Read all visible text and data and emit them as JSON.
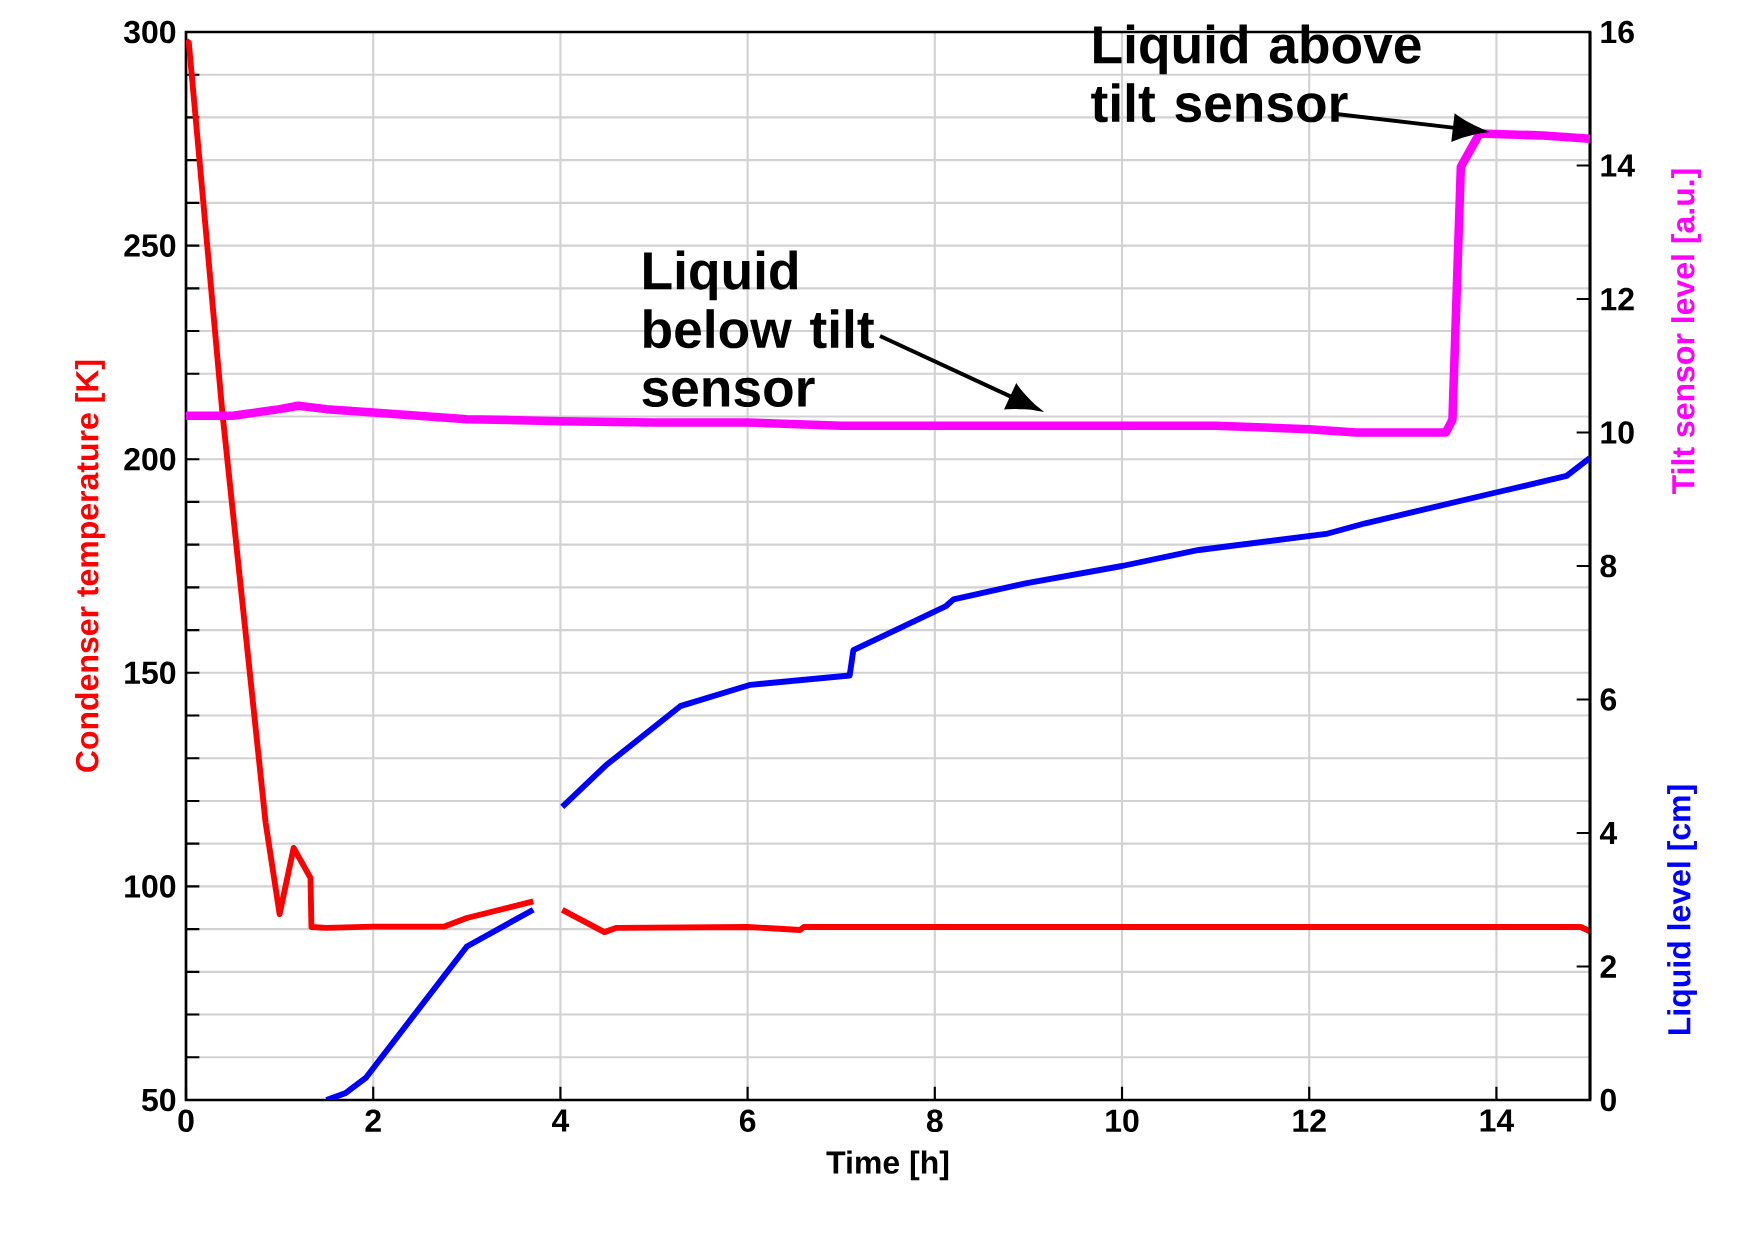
{
  "chart_data": {
    "type": "line",
    "xlabel": "Time [h]",
    "ylabel": "Condenser temperature [K]",
    "y2label": "Tilt sensor level [a.u.]",
    "xlim": [
      0,
      15
    ],
    "xticks": [
      0,
      2,
      4,
      6,
      8,
      10,
      12,
      14
    ],
    "ylim": [
      50,
      300
    ],
    "yticks": [
      50,
      {
        "value": 60,
        "label": null
      },
      {
        "value": 70,
        "label": null
      },
      {
        "value": 80,
        "label": null
      },
      {
        "value": 90,
        "label": null
      },
      100,
      {
        "value": 110,
        "label": null
      },
      {
        "value": 120,
        "label": null
      },
      {
        "value": 130,
        "label": null
      },
      {
        "value": 140,
        "label": null
      },
      150,
      {
        "value": 160,
        "label": null
      },
      {
        "value": 170,
        "label": null
      },
      {
        "value": 180,
        "label": null
      },
      {
        "value": 190,
        "label": null
      },
      200,
      {
        "value": 210,
        "label": null
      },
      {
        "value": 220,
        "label": null
      },
      {
        "value": 230,
        "label": null
      },
      {
        "value": 240,
        "label": null
      },
      250,
      {
        "value": 260,
        "label": null
      },
      {
        "value": 270,
        "label": null
      },
      {
        "value": 280,
        "label": null
      },
      {
        "value": 290,
        "label": null
      },
      300
    ],
    "y2lim": [
      0,
      16
    ],
    "y2ticks": [
      0,
      2,
      4,
      6,
      8,
      10,
      12,
      14,
      16
    ],
    "grid": true,
    "marker": "none",
    "line_style": "solid",
    "series": [
      {
        "color": "#ff0000",
        "axis": "y",
        "x": [
          0,
          0.03,
          0.39,
          0.85,
          1.0,
          1.15,
          1.33,
          1.34,
          1.5,
          2.0,
          2.76,
          3.0,
          3.71,
          3.72,
          4.02,
          4.47,
          4.6,
          6.0,
          6.56,
          6.6,
          8,
          10,
          12,
          14,
          14.9,
          15
        ],
        "values": [
          298,
          297.5,
          210.6,
          115,
          93.5,
          109,
          102,
          90.5,
          90.3,
          90.6,
          90.6,
          92.6,
          96.5,
          null,
          94.5,
          89.3,
          90.3,
          90.5,
          89.8,
          90.5,
          90.5,
          90.5,
          90.5,
          90.5,
          90.5,
          89.5
        ]
      },
      {
        "color": "#ff00ff",
        "axis": "y2",
        "x": [
          0,
          0.5,
          1.0,
          1.2,
          1.5,
          2,
          3,
          4,
          5,
          6,
          7,
          8,
          9,
          10,
          11,
          12,
          12.5,
          13.46,
          13.53,
          13.62,
          13.82,
          14.5,
          15
        ],
        "values": [
          10.25,
          10.25,
          10.35,
          10.4,
          10.35,
          10.3,
          10.2,
          10.17,
          10.15,
          10.15,
          10.1,
          10.1,
          10.1,
          10.1,
          10.1,
          10.05,
          10.0,
          10.0,
          10.19,
          13.98,
          14.48,
          14.45,
          14.4
        ]
      },
      {
        "color": "#0000ff",
        "axis": "y2",
        "x": [
          1.5,
          1.7,
          1.92,
          3.0,
          3.71,
          3.72,
          4.02,
          4.5,
          5.28,
          6.03,
          7.09,
          7.13,
          8.12,
          8.2,
          8.97,
          10.0,
          10.82,
          12.18,
          12.6,
          13.96,
          14.75,
          15
        ],
        "values": [
          0,
          0.1,
          0.33,
          2.3,
          2.85,
          null,
          4.39,
          5.03,
          5.9,
          6.22,
          6.36,
          6.74,
          7.4,
          7.5,
          7.74,
          8.0,
          8.24,
          8.48,
          8.64,
          9.09,
          9.35,
          9.62
        ]
      }
    ],
    "annotations": [
      "Liquid below tilt sensor",
      "Liquid above tilt sensor",
      "Liquid level [cm]"
    ]
  }
}
